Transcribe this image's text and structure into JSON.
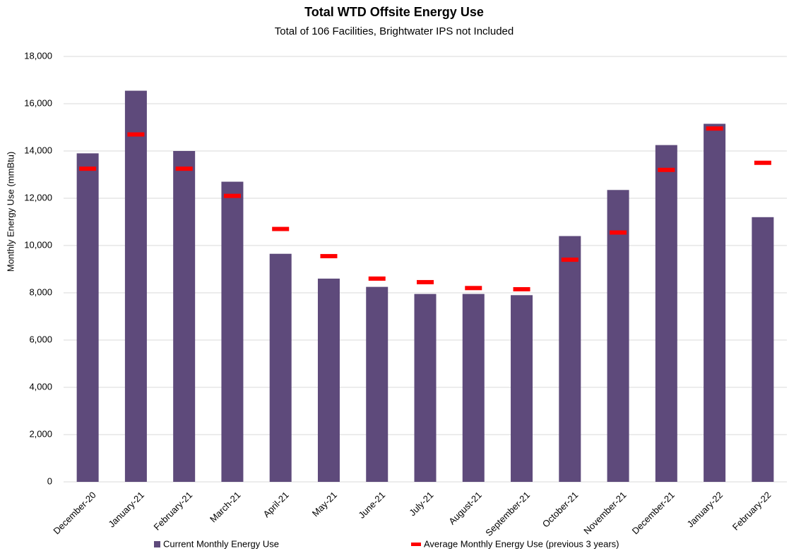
{
  "chart_data": {
    "type": "bar",
    "title": "Total WTD Offsite Energy Use",
    "subtitle": "Total of 106 Facilities, Brightwater IPS not Included",
    "y_label": "Monthly Energy Use (mmBtu)",
    "categories": [
      "December-20",
      "January-21",
      "February-21",
      "March-21",
      "April-21",
      "May-21",
      "June-21",
      "July-21",
      "August-21",
      "September-21",
      "October-21",
      "November-21",
      "December-21",
      "January-22",
      "February-22"
    ],
    "series": [
      {
        "name": "Current Monthly Energy Use",
        "color": "#5e4a7b",
        "style": "bar",
        "values": [
          13900,
          16550,
          14000,
          12700,
          9650,
          8600,
          8250,
          7950,
          7950,
          7900,
          10400,
          12350,
          14250,
          15150,
          11200
        ]
      },
      {
        "name": "Average Monthly Energy Use (previous 3 years)",
        "color": "#ff0000",
        "style": "dash",
        "values": [
          13250,
          14700,
          13250,
          12100,
          10700,
          9550,
          8600,
          8450,
          8200,
          8150,
          9400,
          10550,
          13200,
          14950,
          13500
        ]
      }
    ],
    "ylim": [
      0,
      18000
    ],
    "yticks": [
      0,
      {
        "value": 2000,
        "label": "2,000"
      },
      {
        "value": 4000,
        "label": "4,000"
      },
      {
        "value": 6000,
        "label": "6,000"
      },
      {
        "value": 8000,
        "label": "8,000"
      },
      {
        "value": 10000,
        "label": "10,000"
      },
      {
        "value": 12000,
        "label": "12,000"
      },
      {
        "value": 14000,
        "label": "14,000"
      },
      {
        "value": 16000,
        "label": "16,000"
      },
      {
        "value": 18000,
        "label": "18,000"
      }
    ],
    "grid": true,
    "legend": "bottom"
  }
}
